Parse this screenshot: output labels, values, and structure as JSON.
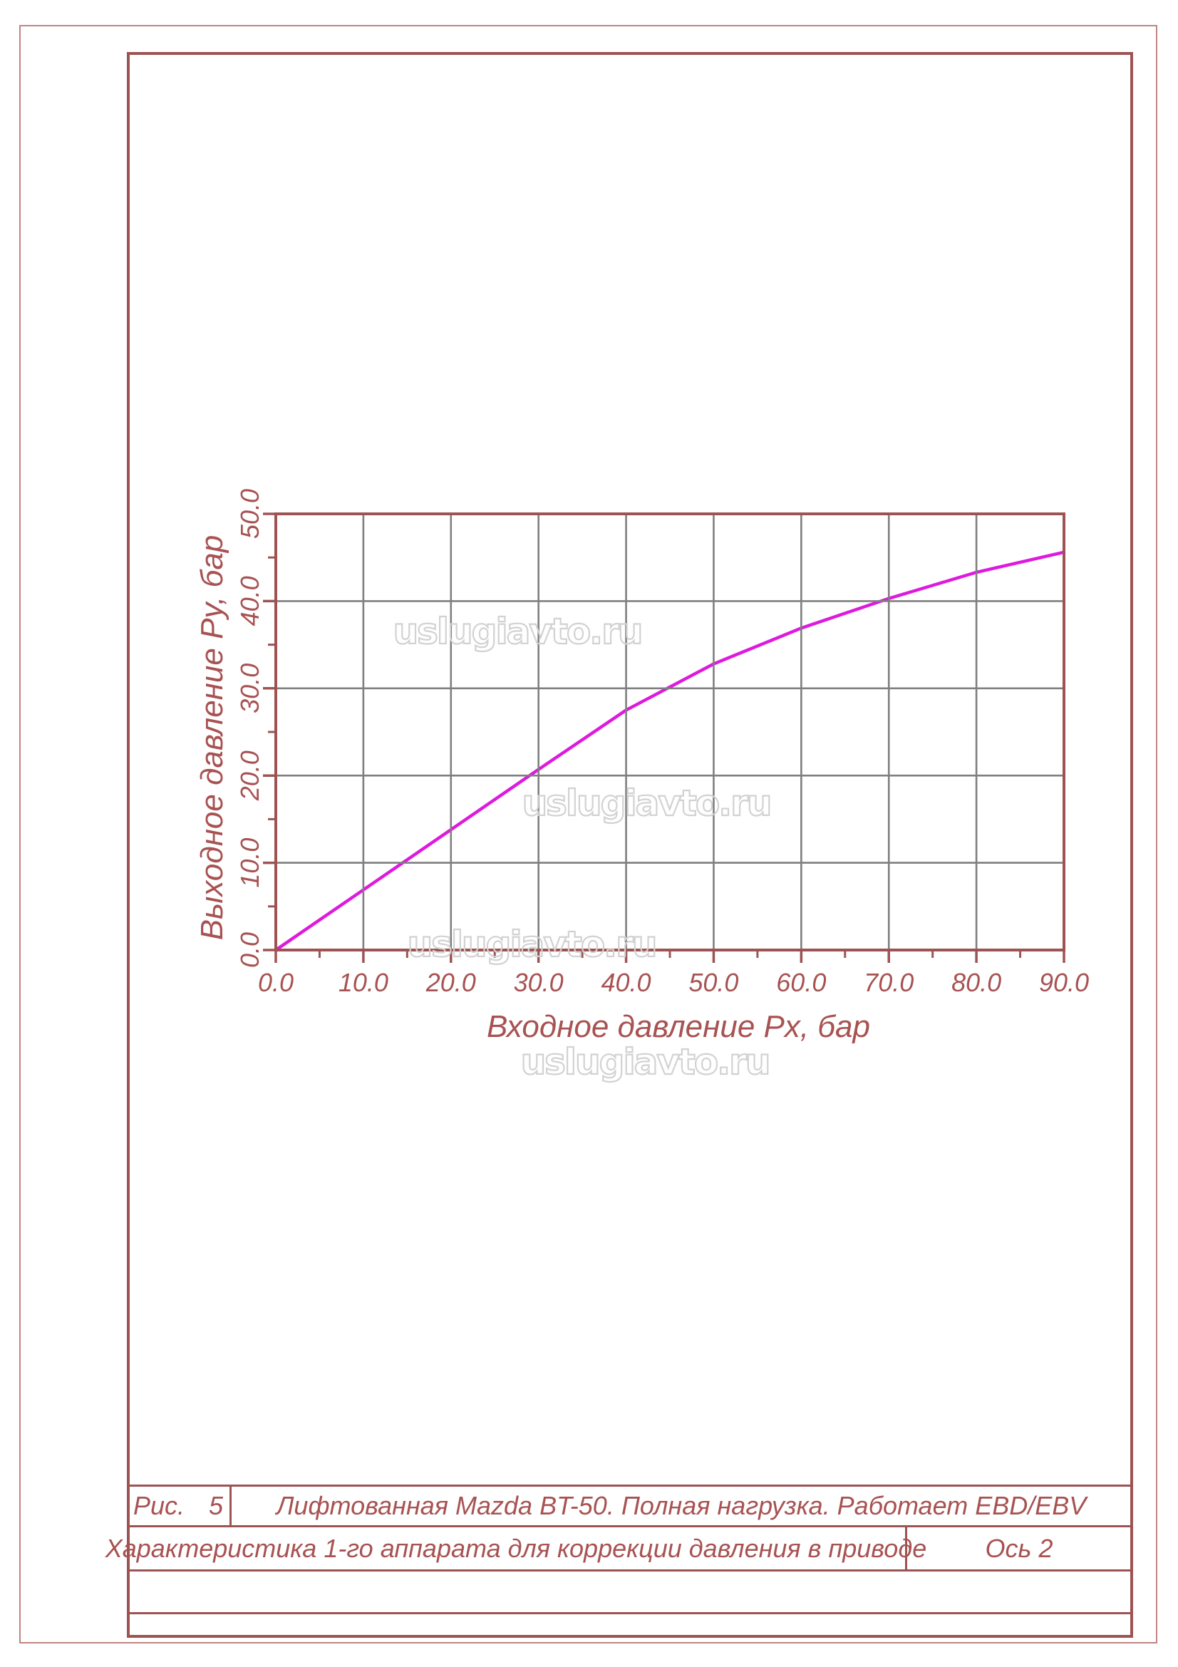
{
  "watermark": {
    "text": "uslugiavto.ru",
    "color": "#d2d2d2"
  },
  "chart_data": {
    "type": "line",
    "title": "",
    "xlabel": "Входное давление Px, бар",
    "ylabel": "Выходное давление Py, бар",
    "xlim": [
      0,
      90
    ],
    "ylim": [
      0,
      50
    ],
    "x_major_step": 10,
    "x_minor_step": 5,
    "y_major_step": 10,
    "y_minor_step": 5,
    "x_tick_labels": [
      "0.0",
      "10.0",
      "20.0",
      "30.0",
      "40.0",
      "50.0",
      "60.0",
      "70.0",
      "80.0",
      "90.0"
    ],
    "y_tick_labels": [
      "0.0",
      "10.0",
      "20.0",
      "30.0",
      "40.0",
      "50.0"
    ],
    "grid": true,
    "legend": false,
    "series": [
      {
        "x": [
          0,
          10,
          20,
          30,
          40,
          50,
          60,
          70,
          80,
          90
        ],
        "values": [
          0,
          6.9,
          13.8,
          20.7,
          27.5,
          32.8,
          36.9,
          40.3,
          43.3,
          45.6
        ],
        "color": "#dd1add"
      }
    ],
    "colors": {
      "axis": "#9e5353",
      "grid": "#7f7f7f",
      "tick_label": "#a85252"
    }
  },
  "title_block": {
    "fig_label": "Рис.",
    "fig_number": "5",
    "row1_title": "Лифтованная Mazda BT-50. Полная нагрузка. Работает EBD/EBV",
    "row2_title": "Характеристика  1-го аппарата для коррекции давления в приводе",
    "row2_axis": "Ось 2"
  }
}
